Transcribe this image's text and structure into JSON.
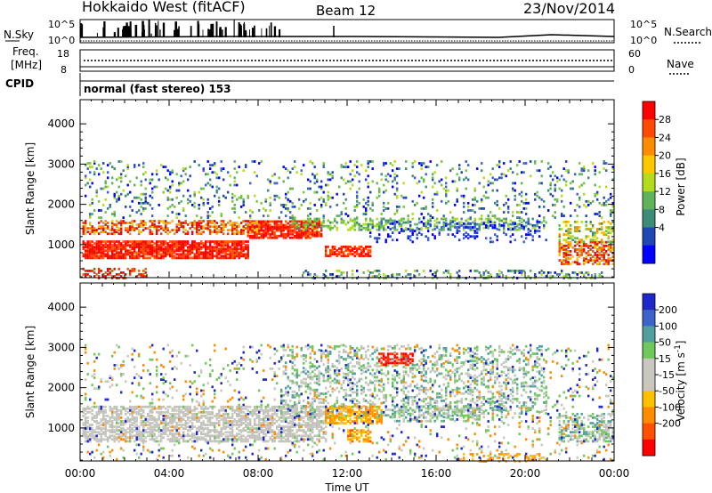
{
  "header": {
    "station": "Hokkaido West (fitACF)",
    "beam": "Beam 12",
    "date": "23/Nov/2014"
  },
  "status_panels": {
    "nsky_label": "N.Sky",
    "nsearch_label": "N.Search",
    "noise_ticks": [
      "10^5",
      "10^0"
    ],
    "freq_label_1": "Freq.",
    "freq_label_2": "[MHz]",
    "freq_ticks": [
      "18",
      "8"
    ],
    "nave_label": "Nave",
    "nave_ticks": [
      "60",
      "0"
    ],
    "cpid_label": "CPID",
    "cpid_text": "normal (fast stereo) 153"
  },
  "chart_data": [
    {
      "type": "heatmap",
      "name": "power",
      "ylabel": "Slant Range [km]",
      "yticks": [
        1000,
        2000,
        3000,
        4000
      ],
      "ylim": [
        180,
        4600
      ],
      "xticks": [
        "00:00",
        "04:00",
        "08:00",
        "12:00",
        "16:00",
        "20:00",
        "00:00"
      ],
      "xlim": [
        0,
        24
      ],
      "colorbar": {
        "label": "Power [dB]",
        "ticks": [
          "28",
          "24",
          "20",
          "16",
          "12",
          "8",
          "4"
        ],
        "colors": [
          "#ff0000",
          "#ff4a00",
          "#ff8c00",
          "#ffc800",
          "#b4dc1e",
          "#5fb45a",
          "#3c8c78",
          "#1e46b4",
          "#0000ff"
        ]
      }
    },
    {
      "type": "heatmap",
      "name": "velocity",
      "ylabel": "Slant Range [km]",
      "yticks": [
        1000,
        2000,
        3000,
        4000
      ],
      "ylim": [
        180,
        4600
      ],
      "xticks": [
        "00:00",
        "04:00",
        "08:00",
        "12:00",
        "16:00",
        "20:00",
        "00:00"
      ],
      "xlim": [
        0,
        24
      ],
      "xlabel": "Time UT",
      "colorbar": {
        "label": "Velocity [m s",
        "label_exp": "-1",
        "label_end": "]",
        "ticks": [
          "200",
          "100",
          "50",
          "15",
          "-15",
          "-50",
          "-100",
          "-200"
        ],
        "colors": [
          "#1e28c8",
          "#3c64c8",
          "#50a0a0",
          "#6ec85a",
          "#c8c8c0",
          "#c8c8c0",
          "#ffc000",
          "#ff8c00",
          "#ff5000",
          "#ff0000"
        ]
      }
    }
  ]
}
